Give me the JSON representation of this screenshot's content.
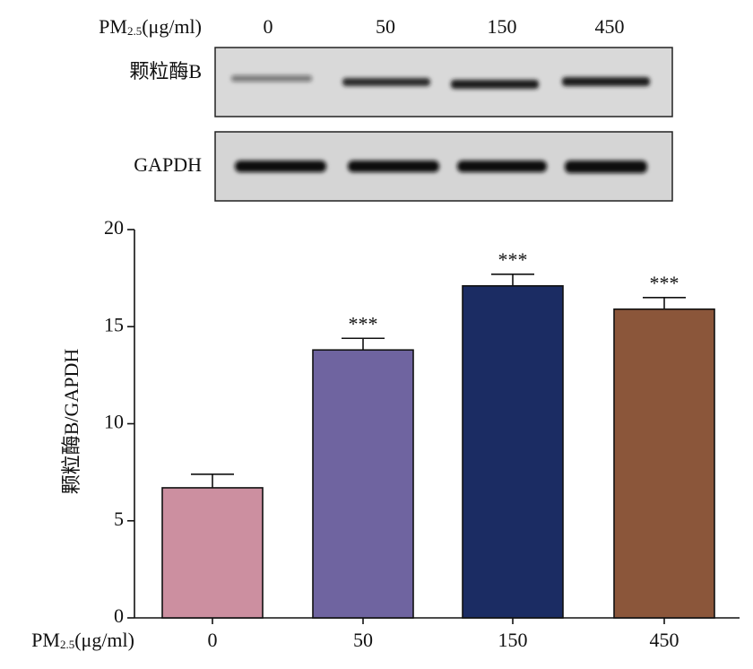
{
  "blot": {
    "header": [
      "PM",
      "2.5",
      "(μg/ml)"
    ],
    "lanes": [
      "0",
      "50",
      "150",
      "450"
    ],
    "rows": [
      "颗粒酶B",
      "GAPDH"
    ]
  },
  "chart_data": {
    "type": "bar",
    "y_label": "颗粒酶B/GAPDH",
    "x_label": [
      "PM",
      "2.5",
      "(μg/ml)"
    ],
    "categories": [
      "0",
      "50",
      "150",
      "450"
    ],
    "values": [
      6.7,
      13.8,
      17.1,
      15.9
    ],
    "errors": [
      0.7,
      0.6,
      0.6,
      0.6
    ],
    "annotations": [
      null,
      "***",
      "***",
      "***"
    ],
    "colors": [
      "#cc8fa0",
      "#6f64a0",
      "#1b2c63",
      "#8b563a"
    ],
    "ylim": [
      0,
      20
    ],
    "yticks": [
      0,
      5,
      10,
      15,
      20
    ]
  }
}
